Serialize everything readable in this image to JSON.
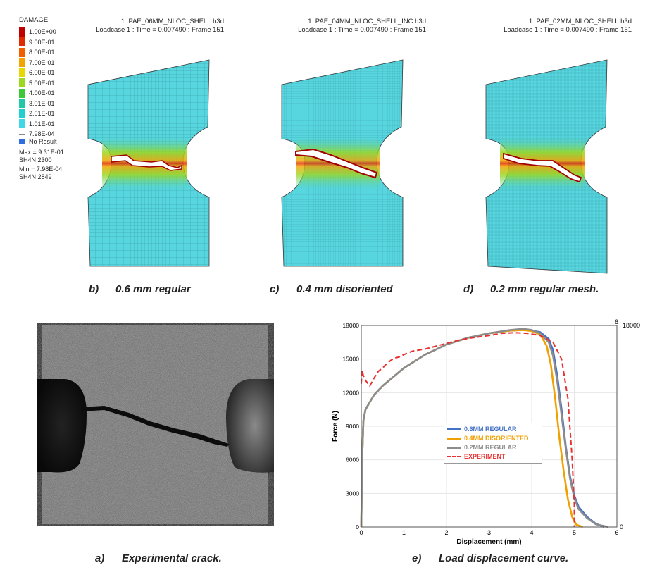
{
  "contour_legend": {
    "title": "DAMAGE",
    "levels": [
      {
        "label": "1.00E+00",
        "color": "#c00000"
      },
      {
        "label": "9.00E-01",
        "color": "#e02a00"
      },
      {
        "label": "8.00E-01",
        "color": "#f06000"
      },
      {
        "label": "7.00E-01",
        "color": "#f2a500"
      },
      {
        "label": "6.00E-01",
        "color": "#e6d800"
      },
      {
        "label": "5.00E-01",
        "color": "#9cd820"
      },
      {
        "label": "4.00E-01",
        "color": "#3cc838"
      },
      {
        "label": "3.01E-01",
        "color": "#20c8a8"
      },
      {
        "label": "2.01E-01",
        "color": "#20d0d0"
      },
      {
        "label": "1.01E-01",
        "color": "#40d8e6"
      },
      {
        "label": "7.98E-04",
        "color": "#888888"
      }
    ],
    "no_result": "No Result",
    "no_result_color": "#2f6fe0",
    "stats": [
      "Max = 9.31E-01",
      "SH4N 2300",
      "Min = 7.98E-04",
      "SH4N 2849"
    ]
  },
  "panels": [
    {
      "file": "1: PAE_06MM_NLOC_SHELL.h3d",
      "info": "Loadcase 1 : Time = 0.007490 : Frame 151",
      "caption_tag": "b)",
      "caption_text": "0.6 mm regular"
    },
    {
      "file": "1: PAE_04MM_NLOC_SHELL_INC.h3d",
      "info": "Loadcase 1 : Time = 0.007490 : Frame 151",
      "caption_tag": "c)",
      "caption_text": "0.4 mm disoriented"
    },
    {
      "file": "1: PAE_02MM_NLOC_SHELL.h3d",
      "info": "Loadcase 1 : Time = 0.007490 : Frame 151",
      "caption_tag": "d)",
      "caption_text": "0.2 mm regular mesh."
    }
  ],
  "experiment_caption": {
    "tag": "a)",
    "text": "Experimental crack."
  },
  "curve_caption": {
    "tag": "e)",
    "text": "Load displacement curve."
  },
  "chart_data": {
    "type": "line",
    "xlabel": "Displacement (mm)",
    "ylabel": "Force (N)",
    "xlim": [
      0,
      6
    ],
    "ylim": [
      0,
      18000
    ],
    "x_ticks": [
      "0",
      "1",
      "2",
      "3",
      "4",
      "5",
      "6"
    ],
    "y_ticks": [
      "0",
      "3000",
      "6000",
      "9000",
      "12000",
      "15000",
      "18000"
    ],
    "right_axis_ticks": {
      "top": "18000",
      "bottom": "0",
      "top_outer": "6",
      "bottom_x": "0"
    },
    "grid": true,
    "legend_position": "center",
    "series": [
      {
        "name": "0.6MM REGULAR",
        "color": "#4472c4",
        "dash": false,
        "x": [
          0,
          0.02,
          0.05,
          0.1,
          0.3,
          0.5,
          1,
          1.5,
          2,
          2.5,
          3,
          3.5,
          3.8,
          4.0,
          4.2,
          4.4,
          4.5,
          4.6,
          4.7,
          4.8,
          4.9,
          5.0,
          5.1,
          5.3,
          5.5,
          5.7
        ],
        "y": [
          0,
          6000,
          9500,
          10500,
          11800,
          12600,
          14200,
          15400,
          16300,
          16900,
          17300,
          17550,
          17600,
          17550,
          17400,
          16800,
          15800,
          13500,
          10500,
          7200,
          4500,
          2800,
          1800,
          900,
          300,
          0
        ]
      },
      {
        "name": "0.4MM DISORIENTED",
        "color": "#f0a000",
        "dash": false,
        "x": [
          0,
          0.02,
          0.05,
          0.1,
          0.3,
          0.5,
          1,
          1.5,
          2,
          2.5,
          3,
          3.5,
          3.8,
          4.0,
          4.2,
          4.35,
          4.45,
          4.55,
          4.65,
          4.75,
          4.85,
          4.95,
          5.05,
          5.2
        ],
        "y": [
          0,
          6000,
          9500,
          10500,
          11800,
          12600,
          14200,
          15400,
          16300,
          16900,
          17300,
          17550,
          17600,
          17500,
          17200,
          16200,
          14500,
          11500,
          8000,
          5000,
          2500,
          900,
          200,
          0
        ]
      },
      {
        "name": "0.2MM REGULAR",
        "color": "#8c8c8c",
        "dash": false,
        "x": [
          0,
          0.02,
          0.05,
          0.1,
          0.3,
          0.5,
          1,
          1.5,
          2,
          2.5,
          3,
          3.5,
          3.8,
          4.0,
          4.2,
          4.4,
          4.5,
          4.6,
          4.7,
          4.8,
          4.9,
          5.0,
          5.1,
          5.3,
          5.5,
          5.8
        ],
        "y": [
          0,
          6000,
          9500,
          10500,
          11800,
          12600,
          14200,
          15400,
          16300,
          16900,
          17300,
          17600,
          17700,
          17600,
          17300,
          16500,
          15300,
          13000,
          10000,
          7000,
          4300,
          2600,
          1600,
          800,
          250,
          0
        ]
      },
      {
        "name": "EXPERIMENT",
        "color": "#e83030",
        "dash": true,
        "x": [
          0,
          0.02,
          0.05,
          0.1,
          0.2,
          0.3,
          0.4,
          0.5,
          0.6,
          0.7,
          0.8,
          0.9,
          1.0,
          1.2,
          1.5,
          1.8,
          2.0,
          2.3,
          2.6,
          3.0,
          3.3,
          3.6,
          3.9,
          4.2,
          4.5,
          4.7,
          4.85,
          4.95,
          5.0,
          5.0
        ],
        "y": [
          12800,
          14000,
          13500,
          13100,
          12600,
          13300,
          13900,
          14200,
          14600,
          14900,
          15100,
          15200,
          15400,
          15700,
          15900,
          16200,
          16400,
          16700,
          16900,
          17100,
          17300,
          17350,
          17300,
          17100,
          16500,
          15000,
          11500,
          6000,
          2000,
          0
        ]
      }
    ]
  }
}
